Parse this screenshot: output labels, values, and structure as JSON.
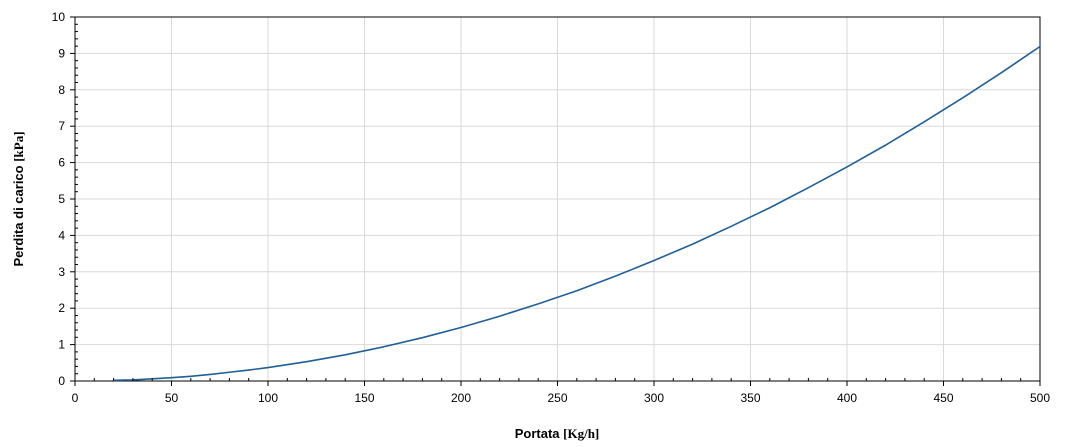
{
  "chart_data": {
    "type": "line",
    "title": "",
    "xlabel": {
      "prefix": "Portata ",
      "unit": "[Kg/h]"
    },
    "ylabel": {
      "prefix": "Perdita di carico ",
      "unit": "[kPa]"
    },
    "xlim": [
      0,
      500
    ],
    "ylim": [
      0,
      10
    ],
    "xticks": [
      0,
      50,
      100,
      150,
      200,
      250,
      300,
      350,
      400,
      450,
      500
    ],
    "yticks": [
      0,
      1,
      2,
      3,
      4,
      5,
      6,
      7,
      8,
      9,
      10
    ],
    "x_minor_step": 10,
    "y_minor_step": 0.2,
    "grid": true,
    "legend": "none",
    "series": [
      {
        "color": "#1f5f99",
        "x": [
          20,
          25,
          30,
          40,
          50,
          60,
          70,
          80,
          90,
          100,
          120,
          140,
          160,
          180,
          200,
          220,
          240,
          260,
          280,
          300,
          320,
          340,
          360,
          380,
          400,
          420,
          440,
          460,
          480,
          500
        ],
        "y": [
          0.02,
          0.025,
          0.03,
          0.06,
          0.09,
          0.13,
          0.18,
          0.24,
          0.3,
          0.37,
          0.53,
          0.72,
          0.94,
          1.19,
          1.47,
          1.78,
          2.12,
          2.48,
          2.88,
          3.31,
          3.76,
          4.25,
          4.76,
          5.31,
          5.88,
          6.48,
          7.12,
          7.78,
          8.47,
          9.19
        ]
      }
    ]
  }
}
